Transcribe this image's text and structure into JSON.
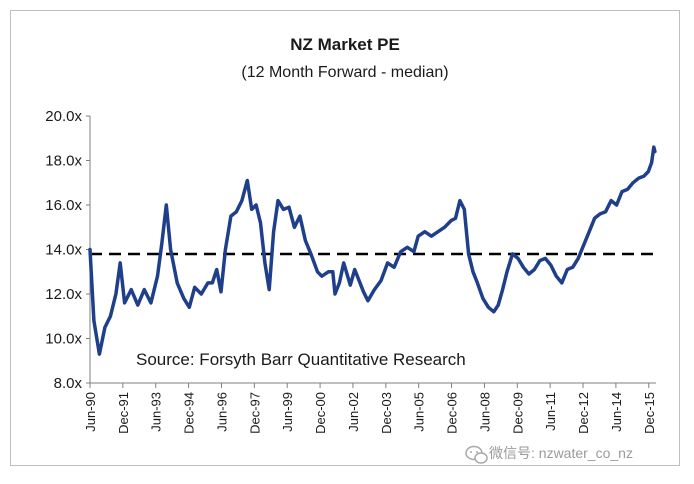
{
  "chart_data": {
    "type": "line",
    "title": "NZ Market PE",
    "subtitle": "(12 Month Forward - median)",
    "source": "Source: Forsyth Barr Quantitative Research",
    "ylim": [
      8,
      20
    ],
    "yticks": [
      "8.0x",
      "10.0x",
      "12.0x",
      "14.0x",
      "16.0x",
      "18.0x",
      "20.0x"
    ],
    "xlim": [
      1990.42,
      2016.25
    ],
    "xticks": [
      {
        "label": "Jun-90",
        "t": 1990.42
      },
      {
        "label": "Dec-91",
        "t": 1991.92
      },
      {
        "label": "Jun-93",
        "t": 1993.42
      },
      {
        "label": "Dec-94",
        "t": 1994.92
      },
      {
        "label": "Jun-96",
        "t": 1996.42
      },
      {
        "label": "Dec-97",
        "t": 1997.92
      },
      {
        "label": "Jun-99",
        "t": 1999.42
      },
      {
        "label": "Dec-00",
        "t": 2000.92
      },
      {
        "label": "Jun-02",
        "t": 2002.42
      },
      {
        "label": "Dec-03",
        "t": 2003.92
      },
      {
        "label": "Jun-05",
        "t": 2005.42
      },
      {
        "label": "Dec-06",
        "t": 2006.92
      },
      {
        "label": "Jun-08",
        "t": 2008.42
      },
      {
        "label": "Dec-09",
        "t": 2009.92
      },
      {
        "label": "Jun-11",
        "t": 2011.42
      },
      {
        "label": "Dec-12",
        "t": 2012.92
      },
      {
        "label": "Jun-14",
        "t": 2014.42
      },
      {
        "label": "Dec-15",
        "t": 2015.92
      }
    ],
    "reference_line": {
      "value": 13.8,
      "style": "dashed"
    },
    "series": [
      {
        "color": "#1f3f8a",
        "points": [
          [
            1990.42,
            14.0
          ],
          [
            1990.6,
            10.8
          ],
          [
            1990.85,
            9.3
          ],
          [
            1991.1,
            10.5
          ],
          [
            1991.35,
            11.0
          ],
          [
            1991.6,
            12.0
          ],
          [
            1991.8,
            13.4
          ],
          [
            1992.0,
            11.6
          ],
          [
            1992.3,
            12.2
          ],
          [
            1992.6,
            11.5
          ],
          [
            1992.9,
            12.2
          ],
          [
            1993.2,
            11.6
          ],
          [
            1993.5,
            12.8
          ],
          [
            1993.7,
            14.3
          ],
          [
            1993.9,
            16.0
          ],
          [
            1994.1,
            14.0
          ],
          [
            1994.4,
            12.5
          ],
          [
            1994.7,
            11.8
          ],
          [
            1994.95,
            11.4
          ],
          [
            1995.2,
            12.3
          ],
          [
            1995.5,
            12.0
          ],
          [
            1995.8,
            12.5
          ],
          [
            1996.0,
            12.5
          ],
          [
            1996.2,
            13.1
          ],
          [
            1996.4,
            12.1
          ],
          [
            1996.6,
            14.0
          ],
          [
            1996.85,
            15.5
          ],
          [
            1997.1,
            15.7
          ],
          [
            1997.35,
            16.2
          ],
          [
            1997.6,
            17.1
          ],
          [
            1997.8,
            15.8
          ],
          [
            1998.0,
            16.0
          ],
          [
            1998.2,
            15.2
          ],
          [
            1998.4,
            13.4
          ],
          [
            1998.6,
            12.2
          ],
          [
            1998.8,
            14.8
          ],
          [
            1999.0,
            16.2
          ],
          [
            1999.25,
            15.8
          ],
          [
            1999.5,
            15.9
          ],
          [
            1999.75,
            15.0
          ],
          [
            2000.0,
            15.5
          ],
          [
            2000.25,
            14.4
          ],
          [
            2000.5,
            13.8
          ],
          [
            2000.8,
            13.0
          ],
          [
            2001.0,
            12.8
          ],
          [
            2001.3,
            13.0
          ],
          [
            2001.5,
            13.0
          ],
          [
            2001.6,
            12.0
          ],
          [
            2001.8,
            12.5
          ],
          [
            2002.0,
            13.4
          ],
          [
            2002.3,
            12.4
          ],
          [
            2002.5,
            13.1
          ],
          [
            2002.7,
            12.6
          ],
          [
            2002.9,
            12.1
          ],
          [
            2003.1,
            11.7
          ],
          [
            2003.4,
            12.2
          ],
          [
            2003.7,
            12.6
          ],
          [
            2004.0,
            13.4
          ],
          [
            2004.3,
            13.2
          ],
          [
            2004.6,
            13.9
          ],
          [
            2004.9,
            14.1
          ],
          [
            2005.2,
            13.9
          ],
          [
            2005.4,
            14.6
          ],
          [
            2005.7,
            14.8
          ],
          [
            2006.0,
            14.6
          ],
          [
            2006.3,
            14.8
          ],
          [
            2006.6,
            15.0
          ],
          [
            2006.9,
            15.3
          ],
          [
            2007.1,
            15.4
          ],
          [
            2007.3,
            16.2
          ],
          [
            2007.5,
            15.8
          ],
          [
            2007.7,
            13.8
          ],
          [
            2007.9,
            13.0
          ],
          [
            2008.1,
            12.5
          ],
          [
            2008.35,
            11.8
          ],
          [
            2008.6,
            11.4
          ],
          [
            2008.85,
            11.2
          ],
          [
            2009.05,
            11.5
          ],
          [
            2009.25,
            12.2
          ],
          [
            2009.45,
            13.0
          ],
          [
            2009.7,
            13.8
          ],
          [
            2009.95,
            13.6
          ],
          [
            2010.2,
            13.2
          ],
          [
            2010.45,
            12.9
          ],
          [
            2010.7,
            13.1
          ],
          [
            2010.95,
            13.5
          ],
          [
            2011.2,
            13.6
          ],
          [
            2011.45,
            13.3
          ],
          [
            2011.7,
            12.8
          ],
          [
            2011.95,
            12.5
          ],
          [
            2012.2,
            13.1
          ],
          [
            2012.45,
            13.2
          ],
          [
            2012.7,
            13.6
          ],
          [
            2012.95,
            14.2
          ],
          [
            2013.2,
            14.8
          ],
          [
            2013.45,
            15.4
          ],
          [
            2013.7,
            15.6
          ],
          [
            2013.95,
            15.7
          ],
          [
            2014.2,
            16.2
          ],
          [
            2014.45,
            16.0
          ],
          [
            2014.7,
            16.6
          ],
          [
            2014.95,
            16.7
          ],
          [
            2015.2,
            17.0
          ],
          [
            2015.45,
            17.2
          ],
          [
            2015.7,
            17.3
          ],
          [
            2015.9,
            17.5
          ],
          [
            2016.05,
            17.9
          ],
          [
            2016.15,
            18.6
          ],
          [
            2016.2,
            18.4
          ]
        ]
      }
    ],
    "grid": false,
    "legend": "none"
  },
  "watermark_text": "微信号: nzwater_co_nz",
  "watermark_icon": "wechat-icon"
}
